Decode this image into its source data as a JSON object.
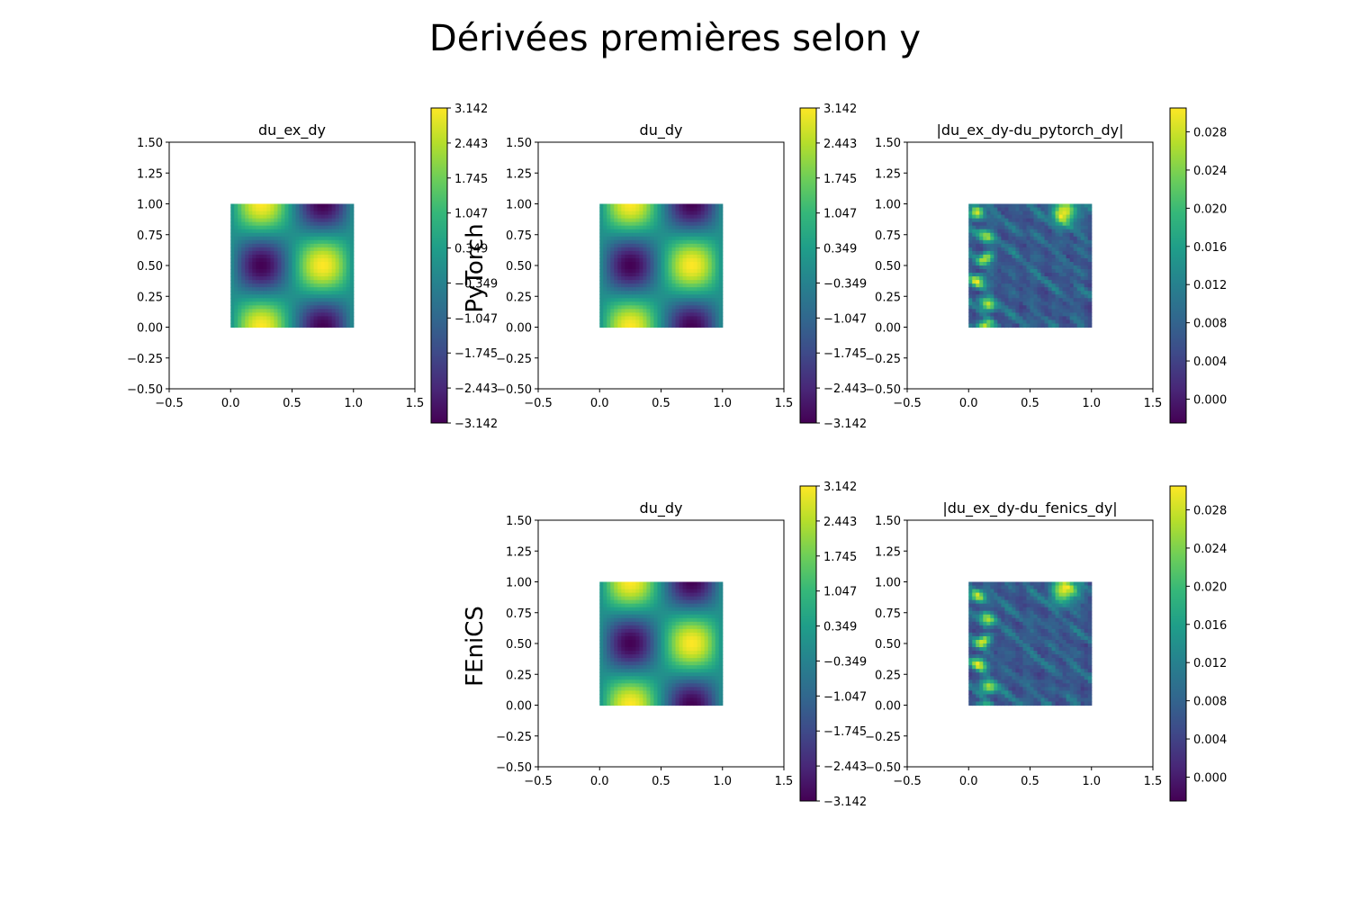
{
  "figure": {
    "title": "Dérivées premières selon y",
    "row_labels": [
      "PyTorch",
      "FEniCS"
    ]
  },
  "colormap": {
    "name": "viridis",
    "stops": [
      "#440154",
      "#482878",
      "#3e4a89",
      "#31688e",
      "#26828e",
      "#1f9e89",
      "#35b779",
      "#6ece58",
      "#b5de2b",
      "#fde725"
    ]
  },
  "chart_data": [
    {
      "type": "heatmap",
      "title": "du_ex_dy",
      "row": 0,
      "col": 0,
      "xlim": [
        -0.5,
        1.5
      ],
      "ylim": [
        -0.5,
        1.5
      ],
      "xticks": [
        "−0.5",
        "0.0",
        "0.5",
        "1.0",
        "1.5"
      ],
      "yticks": [
        "−0.50",
        "−0.25",
        "0.00",
        "0.25",
        "0.50",
        "0.75",
        "1.00",
        "1.25",
        "1.50"
      ],
      "domain": {
        "x": [
          0,
          1
        ],
        "y": [
          0,
          1
        ]
      },
      "field": "pi*sin(2*pi*x)*cos(2*pi*y)",
      "colorbar": {
        "min": -3.142,
        "max": 3.142,
        "ticks": [
          "3.142",
          "2.443",
          "1.745",
          "1.047",
          "0.349",
          "−0.349",
          "−1.047",
          "−1.745",
          "−2.443",
          "−3.142"
        ]
      }
    },
    {
      "type": "heatmap",
      "title": "du_dy",
      "row": 0,
      "col": 1,
      "xlim": [
        -0.5,
        1.5
      ],
      "ylim": [
        -0.5,
        1.5
      ],
      "xticks": [
        "−0.5",
        "0.0",
        "0.5",
        "1.0",
        "1.5"
      ],
      "yticks": [
        "−0.50",
        "−0.25",
        "0.00",
        "0.25",
        "0.50",
        "0.75",
        "1.00",
        "1.25",
        "1.50"
      ],
      "domain": {
        "x": [
          0,
          1
        ],
        "y": [
          0,
          1
        ]
      },
      "field": "pi*sin(2*pi*x)*cos(2*pi*y)",
      "colorbar": {
        "min": -3.142,
        "max": 3.142,
        "ticks": [
          "3.142",
          "2.443",
          "1.745",
          "1.047",
          "0.349",
          "−0.349",
          "−1.047",
          "−1.745",
          "−2.443",
          "−3.142"
        ]
      }
    },
    {
      "type": "heatmap",
      "title": "|du_ex_dy-du_pytorch_dy|",
      "row": 0,
      "col": 2,
      "xlim": [
        -0.5,
        1.5
      ],
      "ylim": [
        -0.5,
        1.5
      ],
      "xticks": [
        "−0.5",
        "0.0",
        "0.5",
        "1.0",
        "1.5"
      ],
      "yticks": [
        "−0.50",
        "−0.25",
        "0.00",
        "0.25",
        "0.50",
        "0.75",
        "1.00",
        "1.25",
        "1.50"
      ],
      "domain": {
        "x": [
          0,
          1
        ],
        "y": [
          0,
          1
        ]
      },
      "field": "error-texture",
      "colorbar": {
        "min": -0.0025,
        "max": 0.0305,
        "ticks": [
          "0.028",
          "0.024",
          "0.020",
          "0.016",
          "0.012",
          "0.008",
          "0.004",
          "0.000"
        ],
        "tick_values": [
          0.028,
          0.024,
          0.02,
          0.016,
          0.012,
          0.008,
          0.004,
          0.0
        ]
      }
    },
    {
      "type": "heatmap",
      "title": "du_dy",
      "row": 1,
      "col": 1,
      "xlim": [
        -0.5,
        1.5
      ],
      "ylim": [
        -0.5,
        1.5
      ],
      "xticks": [
        "−0.5",
        "0.0",
        "0.5",
        "1.0",
        "1.5"
      ],
      "yticks": [
        "−0.50",
        "−0.25",
        "0.00",
        "0.25",
        "0.50",
        "0.75",
        "1.00",
        "1.25",
        "1.50"
      ],
      "domain": {
        "x": [
          0,
          1
        ],
        "y": [
          0,
          1
        ]
      },
      "field": "pi*sin(2*pi*x)*cos(2*pi*y)",
      "colorbar": {
        "min": -3.142,
        "max": 3.142,
        "ticks": [
          "3.142",
          "2.443",
          "1.745",
          "1.047",
          "0.349",
          "−0.349",
          "−1.047",
          "−1.745",
          "−2.443",
          "−3.142"
        ]
      }
    },
    {
      "type": "heatmap",
      "title": "|du_ex_dy-du_fenics_dy|",
      "row": 1,
      "col": 2,
      "xlim": [
        -0.5,
        1.5
      ],
      "ylim": [
        -0.5,
        1.5
      ],
      "xticks": [
        "−0.5",
        "0.0",
        "0.5",
        "1.0",
        "1.5"
      ],
      "yticks": [
        "−0.50",
        "−0.25",
        "0.00",
        "0.25",
        "0.50",
        "0.75",
        "1.00",
        "1.25",
        "1.50"
      ],
      "domain": {
        "x": [
          0,
          1
        ],
        "y": [
          0,
          1
        ]
      },
      "field": "error-texture",
      "colorbar": {
        "min": -0.0025,
        "max": 0.0305,
        "ticks": [
          "0.028",
          "0.024",
          "0.020",
          "0.016",
          "0.012",
          "0.008",
          "0.004",
          "0.000"
        ],
        "tick_values": [
          0.028,
          0.024,
          0.02,
          0.016,
          0.012,
          0.008,
          0.004,
          0.0
        ]
      }
    }
  ]
}
